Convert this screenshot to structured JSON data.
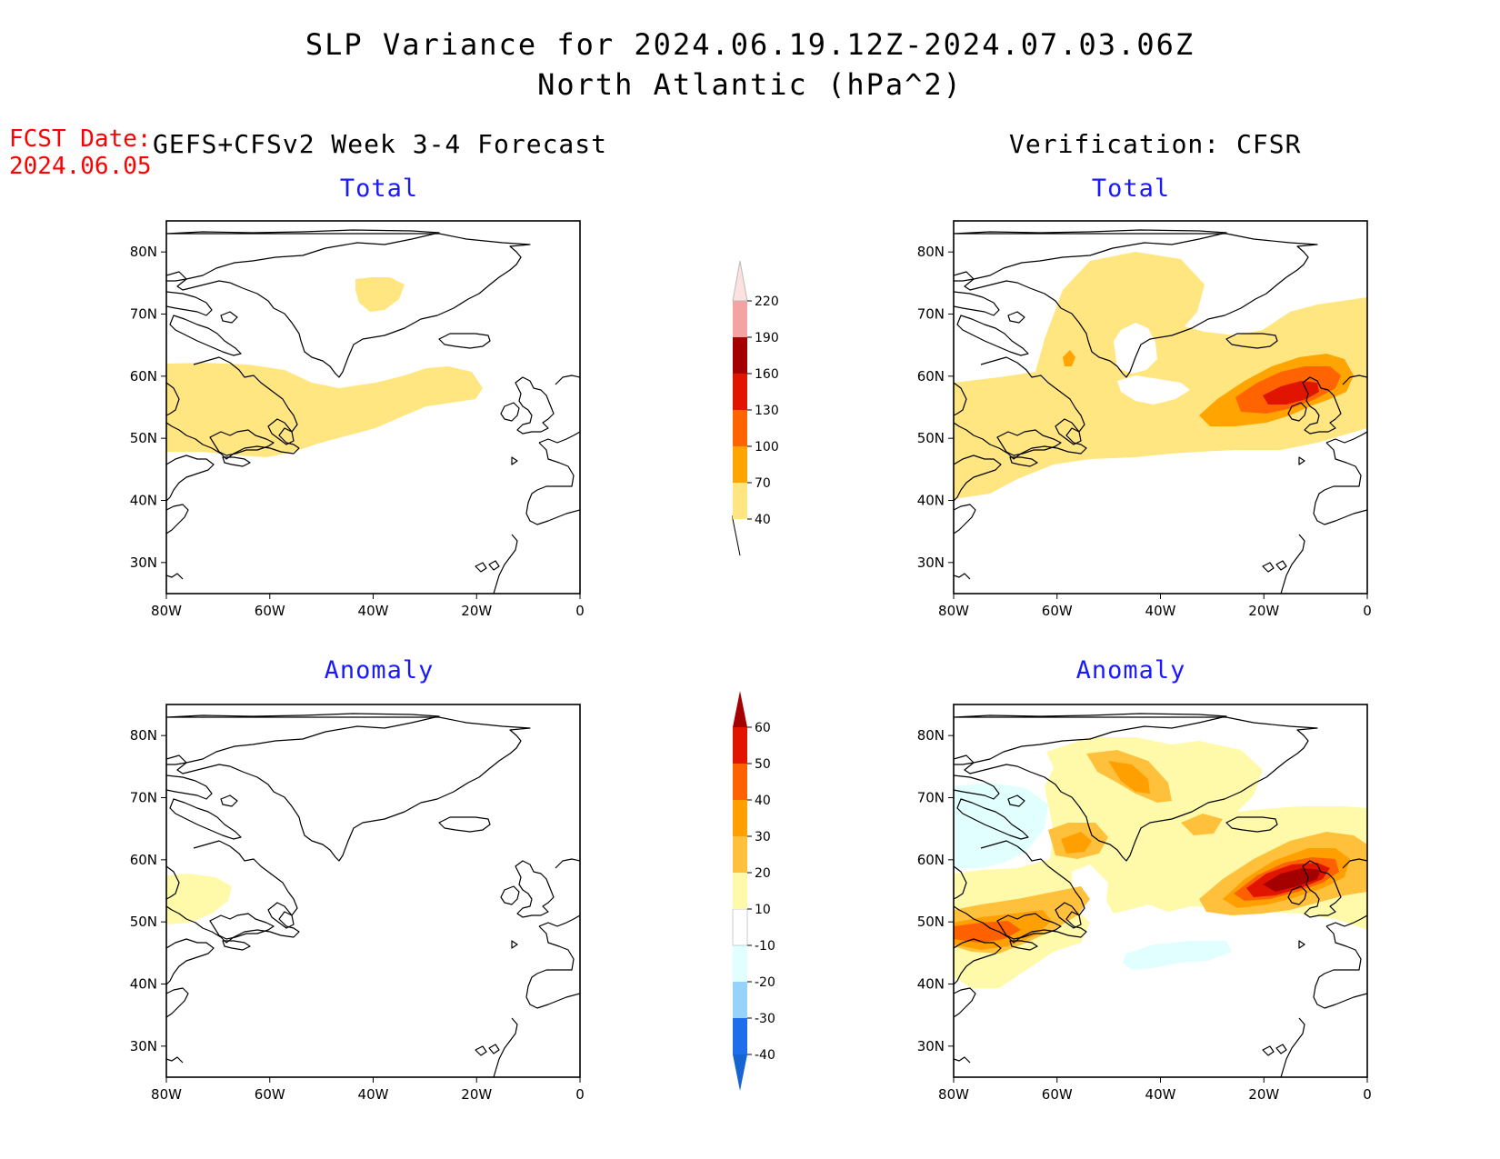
{
  "title": {
    "line1": "SLP Variance for 2024.06.19.12Z-2024.07.03.06Z",
    "line2": "North Atlantic (hPa^2)"
  },
  "fcst": {
    "label": "FCST Date:",
    "date": "2024.06.05"
  },
  "left_header": "GEFS+CFSv2 Week 3-4 Forecast",
  "right_header": "Verification: CFSR",
  "panels": {
    "forecast_total": {
      "title": "Total"
    },
    "forecast_anomaly": {
      "title": "Anomaly"
    },
    "verif_total": {
      "title": "Total"
    },
    "verif_anomaly": {
      "title": "Anomaly"
    }
  },
  "map_axes": {
    "lon_labels": [
      "80W",
      "60W",
      "40W",
      "20W",
      "0"
    ],
    "lat_labels": [
      "80N",
      "70N",
      "60N",
      "50N",
      "40N",
      "30N"
    ]
  },
  "chart_data": [
    {
      "type": "heatmap",
      "panel": "forecast_total",
      "description_text": "",
      "x_range_lon": [
        -80,
        0
      ],
      "y_range_lat": [
        25,
        85
      ],
      "shaded_regions": [
        {
          "level_min": 40,
          "level_max": 70,
          "region": "broad band 48N-62N from 80W to 20W"
        },
        {
          "level_min": 40,
          "level_max": 70,
          "region": "small patch near 73N 43W"
        }
      ]
    },
    {
      "type": "heatmap",
      "panel": "verif_total",
      "x_range_lon": [
        -80,
        0
      ],
      "y_range_lat": [
        25,
        85
      ],
      "shaded_regions": [
        {
          "level_min": 40,
          "level_max": 70,
          "region": "large area 40N-80N across basin"
        },
        {
          "level_min": 70,
          "level_max": 100,
          "region": "around 55N 20W-5W"
        },
        {
          "level_min": 100,
          "level_max": 130,
          "region": "around 55N 18W"
        },
        {
          "level_min": 130,
          "level_max": 160,
          "region": "core near 56N 15W"
        }
      ]
    },
    {
      "type": "heatmap",
      "panel": "forecast_anomaly",
      "x_range_lon": [
        -80,
        0
      ],
      "y_range_lat": [
        25,
        85
      ],
      "shaded_regions": [
        {
          "level_min": 10,
          "level_max": 20,
          "region": "small patch 50N-57N 80W-68W"
        }
      ]
    },
    {
      "type": "heatmap",
      "panel": "verif_anomaly",
      "x_range_lon": [
        -80,
        0
      ],
      "y_range_lat": [
        25,
        85
      ],
      "shaded_regions": [
        {
          "level_min": 10,
          "level_max": 60,
          "region": "max near 56N 15W"
        },
        {
          "level_min": 10,
          "level_max": 40,
          "region": "near 45N 75W"
        },
        {
          "level_min": 10,
          "level_max": 30,
          "region": "near 75N 45W"
        },
        {
          "level_min": -20,
          "level_max": -10,
          "region": "near 68N 75W and 43N 35W"
        }
      ]
    }
  ],
  "colorbar_total": {
    "labels": [
      "40",
      "70",
      "100",
      "130",
      "160",
      "190",
      "220"
    ],
    "colors": [
      "#ffe680",
      "#ffa400",
      "#ff6400",
      "#e11400",
      "#a50000",
      "#f4a3a3",
      "#fde0e0"
    ]
  },
  "colorbar_anomaly": {
    "labels": [
      "-40",
      "-30",
      "-20",
      "-10",
      "10",
      "20",
      "30",
      "40",
      "50",
      "60"
    ],
    "colors": [
      "#1464d2",
      "#1e6eeb",
      "#96d2fa",
      "#e1ffff",
      "#ffffff",
      "#fffaaa",
      "#ffc03c",
      "#ffa000",
      "#ff6000",
      "#e11400",
      "#a50000"
    ]
  },
  "colors": {
    "y1": "#ffe680",
    "y2": "#ffc03c",
    "o1": "#ffa000",
    "o2": "#ff6000",
    "r1": "#e11400",
    "r2": "#a50000",
    "lightyellow": "#fffaaa",
    "lightcyan": "#e1ffff",
    "title_blue": "#1a1aff",
    "fcst_red": "#ff0000"
  }
}
